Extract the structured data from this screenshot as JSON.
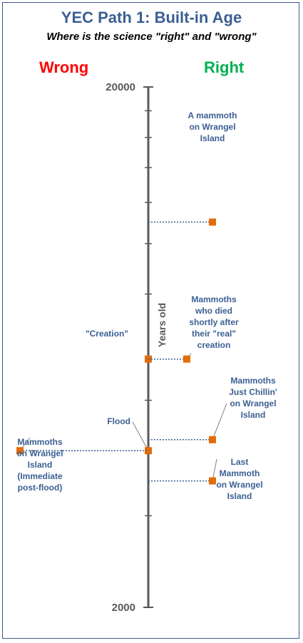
{
  "chart_data": {
    "type": "scatter",
    "title": "YEC Path 1: Built-in Age",
    "subtitle": "Where is the science \"right\" and \"wrong\"",
    "side_labels": {
      "left": "Wrong",
      "right": "Right"
    },
    "axis": {
      "label": "Years old",
      "scale": "log",
      "range": [
        2000,
        20000
      ],
      "tick_labels": [
        "20000",
        "2000"
      ],
      "minor_ticks": [
        18000,
        16000,
        14000,
        12000,
        10000,
        8000,
        6000,
        5000,
        4000,
        3000
      ]
    },
    "colors": {
      "marker": "#e36c09",
      "line": "#3b5f92",
      "axis": "#595959"
    },
    "points": [
      {
        "value": 11000,
        "side": "right",
        "label": [
          "A mammoth",
          "on Wrangel",
          "Island"
        ]
      },
      {
        "value": 6000,
        "side": "axis",
        "label": [
          "\"Creation\""
        ]
      },
      {
        "value": 6000,
        "side": "right",
        "label": [
          "Mammoths",
          "who died",
          "shortly after",
          "their \"real\"",
          "creation"
        ]
      },
      {
        "value": 4200,
        "side": "right",
        "label": [
          "Mammoths",
          "Just Chillin'",
          "on Wrangel",
          "Island"
        ]
      },
      {
        "value": 4000,
        "side": "axis",
        "label": [
          "Flood"
        ]
      },
      {
        "value": 4000,
        "side": "left",
        "label": [
          "Mammoths",
          "on Wrangel",
          "Island",
          "(Immediate",
          "post-flood)"
        ]
      },
      {
        "value": 3500,
        "side": "right",
        "label": [
          "Last",
          "Mammoth",
          "on Wrangel",
          "Island"
        ]
      }
    ]
  }
}
